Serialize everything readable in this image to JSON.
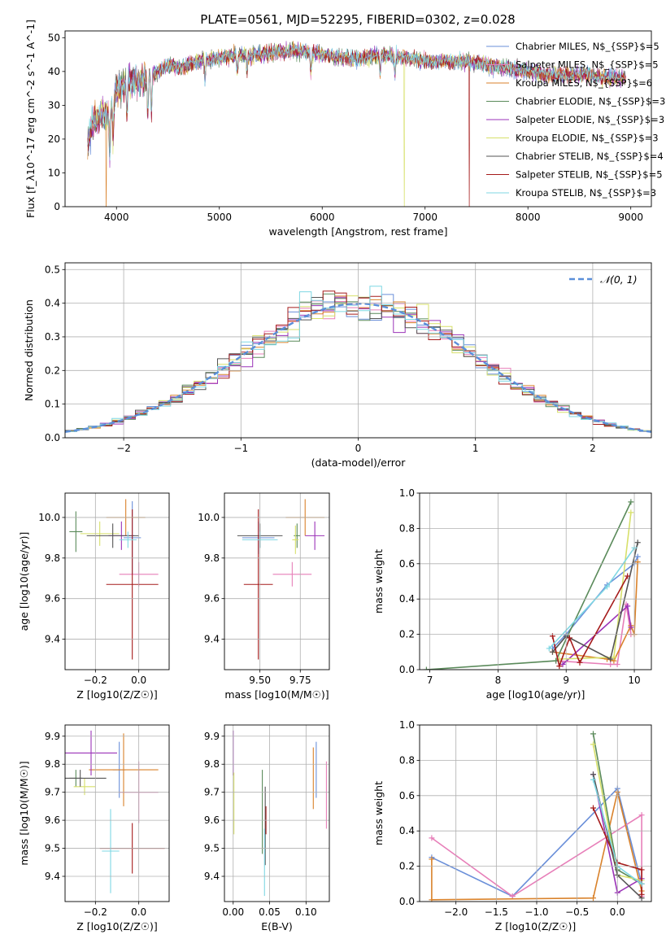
{
  "figure_title": "PLATE=0561, MJD=52295, FIBERID=0302, z=0.028",
  "colors": [
    "#6a8fd9",
    "#e77fb9",
    "#d9822b",
    "#5a8a5a",
    "#9b33b8",
    "#d7e06a",
    "#555555",
    "#a51b1b",
    "#7fd7e3"
  ],
  "legend_labels": [
    "Chabrier MILES, N$_{SSP}$=5",
    "Salpeter MILES, N$_{SSP}$=5",
    "Kroupa MILES, N$_{SSP}$=6",
    "Chabrier ELODIE, N$_{SSP}$=3",
    "Salpeter ELODIE, N$_{SSP}$=3",
    "Kroupa ELODIE, N$_{SSP}$=3",
    "Chabrier STELIB, N$_{SSP}$=4",
    "Salpeter STELIB, N$_{SSP}$=5",
    "Kroupa STELIB, N$_{SSP}$=3"
  ],
  "chart_data": [
    {
      "id": "spectrum",
      "type": "line",
      "xlabel": "wavelength [Angstrom, rest frame]",
      "ylabel": "Flux [f_λ10^-17 erg cm^-2 s^-1 A^-1]",
      "xlim": [
        3500,
        9200
      ],
      "ylim": [
        0,
        52
      ],
      "xticks": [
        4000,
        5000,
        6000,
        7000,
        8000,
        9000
      ],
      "yticks": [
        0,
        10,
        20,
        30,
        40,
        50
      ],
      "grid": false,
      "legend": "right",
      "continuum": {
        "x": [
          3720,
          3760,
          3800,
          3850,
          3900,
          3950,
          4000,
          4100,
          4200,
          4300,
          4400,
          4500,
          4600,
          4800,
          5000,
          5200,
          5400,
          5600,
          5800,
          6000,
          6200,
          6400,
          6600,
          6800,
          7000,
          7200,
          7400,
          7600,
          7800,
          8000,
          8200,
          8400,
          8600,
          8800,
          8950
        ],
        "y": [
          18,
          24,
          26,
          27,
          27,
          29,
          34,
          37,
          37,
          38,
          40,
          42,
          41,
          43,
          44,
          45,
          45,
          46,
          46,
          45,
          44,
          44,
          45,
          44,
          43,
          43,
          43,
          42,
          41,
          40,
          39,
          39,
          39,
          38,
          38
        ]
      },
      "dropouts": [
        {
          "series": 2,
          "x": 3900
        },
        {
          "series": 5,
          "x": 6800
        },
        {
          "series": 7,
          "x": 7430
        }
      ]
    },
    {
      "id": "residuals",
      "type": "step",
      "xlabel": "(data-model)/error",
      "ylabel": "Normed distribution",
      "xlim": [
        -2.5,
        2.5
      ],
      "ylim": [
        0,
        0.52
      ],
      "xticks": [
        -2,
        -1,
        0,
        1,
        2
      ],
      "yticks": [
        0.0,
        0.1,
        0.2,
        0.3,
        0.4,
        0.5
      ],
      "grid": true,
      "legend": "top-right",
      "gaussian_label": "𝒩(0, 1)",
      "gaussian_color": "#5b8fd9",
      "bin_width": 0.1
    },
    {
      "id": "age-vs-Z",
      "type": "errorbar",
      "xlabel": "Z [log10(Z/Z☉)]",
      "ylabel": "age [log10(age/yr)]",
      "xlim": [
        -0.34,
        0.14
      ],
      "ylim": [
        9.25,
        10.12
      ],
      "xticks": [
        -0.2,
        0.0
      ],
      "yticks": [
        9.4,
        9.6,
        9.8,
        10.0
      ],
      "points": [
        {
          "s": 0,
          "x": -0.03,
          "y": 9.9,
          "xe": 0.04,
          "ye": 0.18
        },
        {
          "s": 1,
          "x": 0.0,
          "y": 9.72,
          "xe": 0.09,
          "ye": 0.06
        },
        {
          "s": 2,
          "x": -0.06,
          "y": 10.0,
          "xe": 0.09,
          "ye": 0.09
        },
        {
          "s": 3,
          "x": -0.29,
          "y": 9.93,
          "xe": 0.03,
          "ye": 0.1
        },
        {
          "s": 4,
          "x": -0.08,
          "y": 9.91,
          "xe": 0.06,
          "ye": 0.07
        },
        {
          "s": 5,
          "x": -0.18,
          "y": 9.92,
          "xe": 0.09,
          "ye": 0.06
        },
        {
          "s": 6,
          "x": -0.12,
          "y": 9.91,
          "xe": 0.12,
          "ye": 0.06
        },
        {
          "s": 7,
          "x": -0.03,
          "y": 9.67,
          "xe": 0.12,
          "ye": 0.37
        },
        {
          "s": 8,
          "x": -0.05,
          "y": 9.89,
          "xe": 0.04,
          "ye": 0.04
        }
      ]
    },
    {
      "id": "age-vs-mass",
      "type": "errorbar",
      "xlabel": "mass [log10(M/M☉)]",
      "ylabel": "",
      "xlim": [
        9.28,
        9.93
      ],
      "ylim": [
        9.25,
        10.12
      ],
      "xticks": [
        9.5,
        9.75
      ],
      "yticks": [
        9.4,
        9.6,
        9.8,
        10.0
      ],
      "points": [
        {
          "s": 0,
          "x": 9.49,
          "y": 9.9,
          "xe": 0.1,
          "ye": 0.08
        },
        {
          "s": 1,
          "x": 9.7,
          "y": 9.72,
          "xe": 0.12,
          "ye": 0.06
        },
        {
          "s": 2,
          "x": 9.78,
          "y": 10.0,
          "xe": 0.12,
          "ye": 0.09
        },
        {
          "s": 3,
          "x": 9.73,
          "y": 9.91,
          "xe": 0.02,
          "ye": 0.06
        },
        {
          "s": 4,
          "x": 9.84,
          "y": 9.91,
          "xe": 0.06,
          "ye": 0.07
        },
        {
          "s": 5,
          "x": 9.72,
          "y": 9.89,
          "xe": 0.02,
          "ye": 0.07
        },
        {
          "s": 6,
          "x": 9.5,
          "y": 9.91,
          "xe": 0.14,
          "ye": 0.06
        },
        {
          "s": 7,
          "x": 9.49,
          "y": 9.67,
          "xe": 0.09,
          "ye": 0.37
        },
        {
          "s": 8,
          "x": 9.5,
          "y": 9.89,
          "xe": 0.11,
          "ye": 0.04
        }
      ]
    },
    {
      "id": "mass-weight-vs-age",
      "type": "line",
      "xlabel": "age [log10(age/yr)]",
      "ylabel": "mass weight",
      "xlim": [
        6.85,
        10.25
      ],
      "ylim": [
        0,
        1.0
      ],
      "xticks": [
        7,
        8,
        9,
        10
      ],
      "yticks": [
        0.0,
        0.2,
        0.4,
        0.6,
        0.8,
        1.0
      ],
      "series": [
        {
          "s": 0,
          "x": [
            8.8,
            9.0,
            9.6,
            10.0,
            10.05
          ],
          "y": [
            0.12,
            0.2,
            0.48,
            0.6,
            0.64
          ]
        },
        {
          "s": 1,
          "x": [
            8.85,
            9.65,
            9.75,
            9.88,
            9.95
          ],
          "y": [
            0.05,
            0.03,
            0.03,
            0.37,
            0.2
          ]
        },
        {
          "s": 2,
          "x": [
            8.8,
            9.6,
            9.7,
            9.95,
            10.0,
            10.05
          ],
          "y": [
            0.1,
            0.06,
            0.05,
            0.25,
            0.2,
            0.61
          ]
        },
        {
          "s": 3,
          "x": [
            6.95,
            8.85,
            9.95
          ],
          "y": [
            0.0,
            0.05,
            0.95
          ]
        },
        {
          "s": 4,
          "x": [
            8.95,
            9.9,
            9.95
          ],
          "y": [
            0.03,
            0.36,
            0.24
          ]
        },
        {
          "s": 5,
          "x": [
            8.9,
            9.7,
            9.95
          ],
          "y": [
            0.06,
            0.07,
            0.89
          ]
        },
        {
          "s": 6,
          "x": [
            8.8,
            9.0,
            9.65,
            10.05
          ],
          "y": [
            0.1,
            0.19,
            0.06,
            0.72
          ]
        },
        {
          "s": 7,
          "x": [
            8.8,
            8.9,
            9.05,
            9.2,
            9.9
          ],
          "y": [
            0.19,
            0.02,
            0.18,
            0.04,
            0.53
          ]
        },
        {
          "s": 8,
          "x": [
            8.75,
            9.6,
            10.0
          ],
          "y": [
            0.12,
            0.47,
            0.69
          ]
        }
      ]
    },
    {
      "id": "mass-vs-Z",
      "type": "errorbar",
      "xlabel": "Z [log10(Z/Z☉)]",
      "ylabel": "mass [log10(M/M☉)]",
      "xlim": [
        -0.34,
        0.14
      ],
      "ylim": [
        9.31,
        9.94
      ],
      "xticks": [
        -0.2,
        0.0
      ],
      "yticks": [
        9.4,
        9.5,
        9.6,
        9.7,
        9.8,
        9.9
      ],
      "points": [
        {
          "s": 0,
          "x": -0.09,
          "y": 9.78,
          "xe": 0.03,
          "ye": 0.1
        },
        {
          "s": 1,
          "x": 0.0,
          "y": 9.7,
          "xe": 0.09,
          "ye": 0.11
        },
        {
          "s": 2,
          "x": -0.07,
          "y": 9.78,
          "xe": 0.16,
          "ye": 0.13
        },
        {
          "s": 3,
          "x": -0.29,
          "y": 9.75,
          "xe": 0.03,
          "ye": 0.03
        },
        {
          "s": 4,
          "x": -0.22,
          "y": 9.84,
          "xe": 0.12,
          "ye": 0.08
        },
        {
          "s": 5,
          "x": -0.25,
          "y": 9.72,
          "xe": 0.05,
          "ye": 0.03
        },
        {
          "s": 6,
          "x": -0.27,
          "y": 9.75,
          "xe": 0.12,
          "ye": 0.03
        },
        {
          "s": 7,
          "x": -0.03,
          "y": 9.5,
          "xe": 0.15,
          "ye": 0.09
        },
        {
          "s": 8,
          "x": -0.13,
          "y": 9.49,
          "xe": 0.04,
          "ye": 0.15
        }
      ]
    },
    {
      "id": "mass-vs-ebv",
      "type": "errorbar",
      "xlabel": "E(B-V)",
      "ylabel": "",
      "xlim": [
        -0.012,
        0.132
      ],
      "ylim": [
        9.31,
        9.94
      ],
      "xticks": [
        0.0,
        0.05,
        0.1
      ],
      "yticks": [
        9.4,
        9.5,
        9.6,
        9.7,
        9.8,
        9.9
      ],
      "points": [
        {
          "s": 0,
          "x": 0.114,
          "y": 9.78,
          "xe": 0,
          "ye": 0.1
        },
        {
          "s": 1,
          "x": 0.128,
          "y": 9.69,
          "xe": 0,
          "ye": 0.12
        },
        {
          "s": 2,
          "x": 0.11,
          "y": 9.75,
          "xe": 0,
          "ye": 0.11
        },
        {
          "s": 3,
          "x": 0.04,
          "y": 9.63,
          "xe": 0,
          "ye": 0.15
        },
        {
          "s": 4,
          "x": 0.0,
          "y": 9.84,
          "xe": 0,
          "ye": 0.08
        },
        {
          "s": 5,
          "x": 0.001,
          "y": 9.66,
          "xe": 0,
          "ye": 0.11
        },
        {
          "s": 6,
          "x": 0.044,
          "y": 9.58,
          "xe": 0,
          "ye": 0.14
        },
        {
          "s": 7,
          "x": 0.045,
          "y": 9.6,
          "xe": 0,
          "ye": 0.05
        },
        {
          "s": 8,
          "x": 0.043,
          "y": 9.45,
          "xe": 0,
          "ye": 0.12
        }
      ]
    },
    {
      "id": "mass-weight-vs-Z",
      "type": "line",
      "xlabel": "Z [log10(Z/Z☉)]",
      "ylabel": "mass weight",
      "xlim": [
        -2.45,
        0.42
      ],
      "ylim": [
        0,
        1.0
      ],
      "xticks": [
        -2.0,
        -1.5,
        -1.0,
        -0.5,
        0.0
      ],
      "yticks": [
        0.0,
        0.2,
        0.4,
        0.6,
        0.8,
        1.0
      ],
      "series": [
        {
          "s": 0,
          "x": [
            -2.3,
            -1.3,
            0.0,
            0.3
          ],
          "y": [
            0.25,
            0.03,
            0.64,
            0.1
          ]
        },
        {
          "s": 1,
          "x": [
            -2.3,
            -1.3,
            0.3,
            0.3
          ],
          "y": [
            0.36,
            0.03,
            0.49,
            0.03
          ]
        },
        {
          "s": 2,
          "x": [
            -2.3,
            -2.3,
            -0.3,
            0.0,
            0.3
          ],
          "y": [
            0.24,
            0.01,
            0.02,
            0.62,
            0.06
          ]
        },
        {
          "s": 3,
          "x": [
            -0.3,
            0.0,
            0.3
          ],
          "y": [
            0.95,
            0.18,
            0.1
          ]
        },
        {
          "s": 4,
          "x": [
            -0.3,
            0.0,
            0.3
          ],
          "y": [
            0.72,
            0.05,
            0.13
          ]
        },
        {
          "s": 5,
          "x": [
            -0.3,
            0.0,
            0.3
          ],
          "y": [
            0.89,
            0.15,
            0.12
          ]
        },
        {
          "s": 6,
          "x": [
            -0.3,
            0.0,
            0.3
          ],
          "y": [
            0.72,
            0.15,
            0.02
          ]
        },
        {
          "s": 7,
          "x": [
            -0.3,
            0.0,
            0.3,
            0.3
          ],
          "y": [
            0.53,
            0.22,
            0.18,
            0.04
          ]
        },
        {
          "s": 8,
          "x": [
            -0.3,
            0.0,
            0.3
          ],
          "y": [
            0.69,
            0.2,
            0.1
          ]
        }
      ]
    }
  ]
}
